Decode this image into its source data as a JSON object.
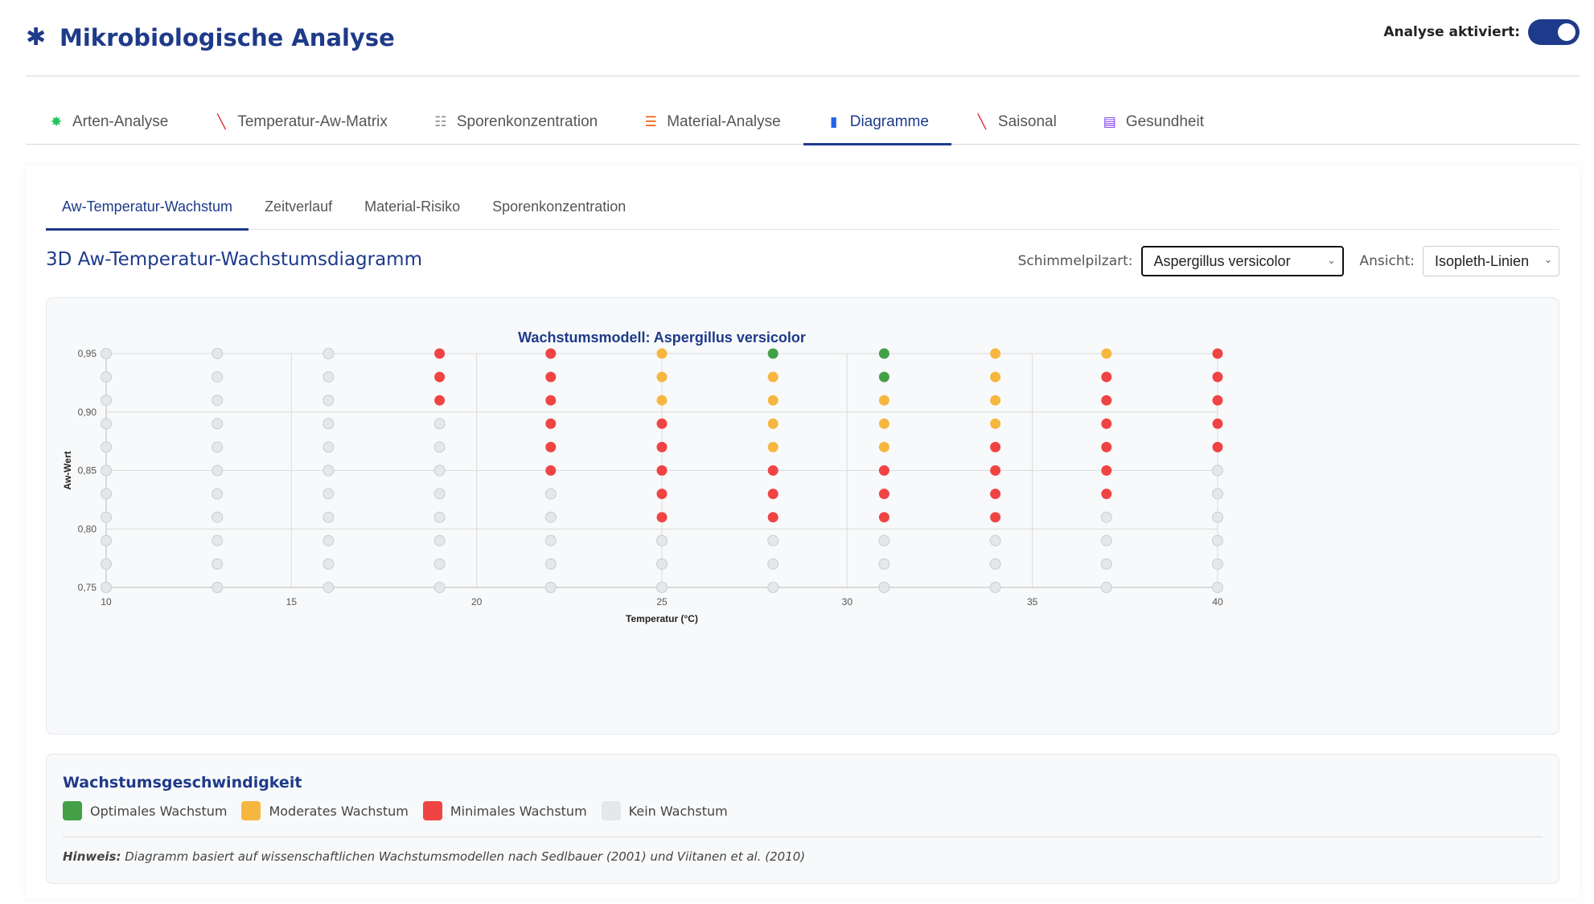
{
  "header": {
    "title": "Mikrobiologische Analyse",
    "logo_icon": "virus-icon",
    "toggle_label": "Analyse aktiviert:",
    "toggle_on": true
  },
  "main_nav": {
    "items": [
      {
        "label": "Arten-Analyse",
        "icon": "microbe-icon",
        "glyph": "✸",
        "color": "#22c55e"
      },
      {
        "label": "Temperatur-Aw-Matrix",
        "icon": "thermometer-icon",
        "glyph": "╲",
        "color": "#dc2626"
      },
      {
        "label": "Sporenkonzentration",
        "icon": "tornado-icon",
        "glyph": "☷",
        "color": "#888888"
      },
      {
        "label": "Material-Analyse",
        "icon": "bricks-icon",
        "glyph": "☰",
        "color": "#ea580c"
      },
      {
        "label": "Diagramme",
        "icon": "bar-chart-icon",
        "glyph": "▮",
        "color": "#2563eb"
      },
      {
        "label": "Saisonal",
        "icon": "thermometer-icon",
        "glyph": "╲",
        "color": "#dc2626"
      },
      {
        "label": "Gesundheit",
        "icon": "clipboard-icon",
        "glyph": "▤",
        "color": "#7c3aed"
      }
    ],
    "active_index": 4
  },
  "sub_tabs": {
    "items": [
      "Aw-Temperatur-Wachstum",
      "Zeitverlauf",
      "Material-Risiko",
      "Sporenkonzentration"
    ],
    "active_index": 0
  },
  "section": {
    "title": "3D Aw-Temperatur-Wachstumsdiagramm",
    "species_label": "Schimmelpilzart:",
    "species_value": "Aspergillus versicolor",
    "view_label": "Ansicht:",
    "view_value": "Isopleth-Linien"
  },
  "chart_data": {
    "type": "scatter",
    "title": "Wachstumsmodell: Aspergillus versicolor",
    "xlabel": "Temperatur (°C)",
    "ylabel": "Aw-Wert",
    "xlim": [
      10,
      40
    ],
    "ylim": [
      0.75,
      0.95
    ],
    "x_ticks": [
      10,
      15,
      20,
      25,
      30,
      35,
      40
    ],
    "y_ticks": [
      0.75,
      0.8,
      0.85,
      0.9,
      0.95
    ],
    "y_tick_labels": [
      "0,75",
      "0,80",
      "0,85",
      "0,90",
      "0,95"
    ],
    "grid": true,
    "x": [
      10,
      13,
      16,
      19,
      22,
      25,
      28,
      31,
      34,
      37,
      40
    ],
    "y": [
      0.95,
      0.93,
      0.91,
      0.89,
      0.87,
      0.85,
      0.83,
      0.81,
      0.79,
      0.77,
      0.75
    ],
    "classes": {
      "O": {
        "name": "Optimales Wachstum",
        "color": "#43a047"
      },
      "M": {
        "name": "Moderates Wachstum",
        "color": "#f6b740"
      },
      "R": {
        "name": "Minimales Wachstum",
        "color": "#f04444"
      },
      "N": {
        "name": "Kein Wachstum",
        "color": "#e5e7eb"
      }
    },
    "grid_values": [
      [
        "N",
        "N",
        "N",
        "R",
        "R",
        "M",
        "O",
        "O",
        "M",
        "M",
        "R"
      ],
      [
        "N",
        "N",
        "N",
        "R",
        "R",
        "M",
        "M",
        "O",
        "M",
        "R",
        "R"
      ],
      [
        "N",
        "N",
        "N",
        "R",
        "R",
        "M",
        "M",
        "M",
        "M",
        "R",
        "R"
      ],
      [
        "N",
        "N",
        "N",
        "N",
        "R",
        "R",
        "M",
        "M",
        "M",
        "R",
        "R"
      ],
      [
        "N",
        "N",
        "N",
        "N",
        "R",
        "R",
        "M",
        "M",
        "R",
        "R",
        "R"
      ],
      [
        "N",
        "N",
        "N",
        "N",
        "R",
        "R",
        "R",
        "R",
        "R",
        "R",
        "N"
      ],
      [
        "N",
        "N",
        "N",
        "N",
        "N",
        "R",
        "R",
        "R",
        "R",
        "R",
        "N"
      ],
      [
        "N",
        "N",
        "N",
        "N",
        "N",
        "R",
        "R",
        "R",
        "R",
        "N",
        "N"
      ],
      [
        "N",
        "N",
        "N",
        "N",
        "N",
        "N",
        "N",
        "N",
        "N",
        "N",
        "N"
      ],
      [
        "N",
        "N",
        "N",
        "N",
        "N",
        "N",
        "N",
        "N",
        "N",
        "N",
        "N"
      ],
      [
        "N",
        "N",
        "N",
        "N",
        "N",
        "N",
        "N",
        "N",
        "N",
        "N",
        "N"
      ]
    ]
  },
  "legend": {
    "title": "Wachstumsgeschwindigkeit",
    "items": [
      {
        "label": "Optimales Wachstum",
        "color": "#43a047"
      },
      {
        "label": "Moderates Wachstum",
        "color": "#f6b740"
      },
      {
        "label": "Minimales Wachstum",
        "color": "#f04444"
      },
      {
        "label": "Kein Wachstum",
        "color": "#e5e7eb"
      }
    ],
    "note_label": "Hinweis:",
    "note_text": "Diagramm basiert auf wissenschaftlichen Wachstumsmodellen nach Sedlbauer (2001) und Viitanen et al. (2010)"
  }
}
